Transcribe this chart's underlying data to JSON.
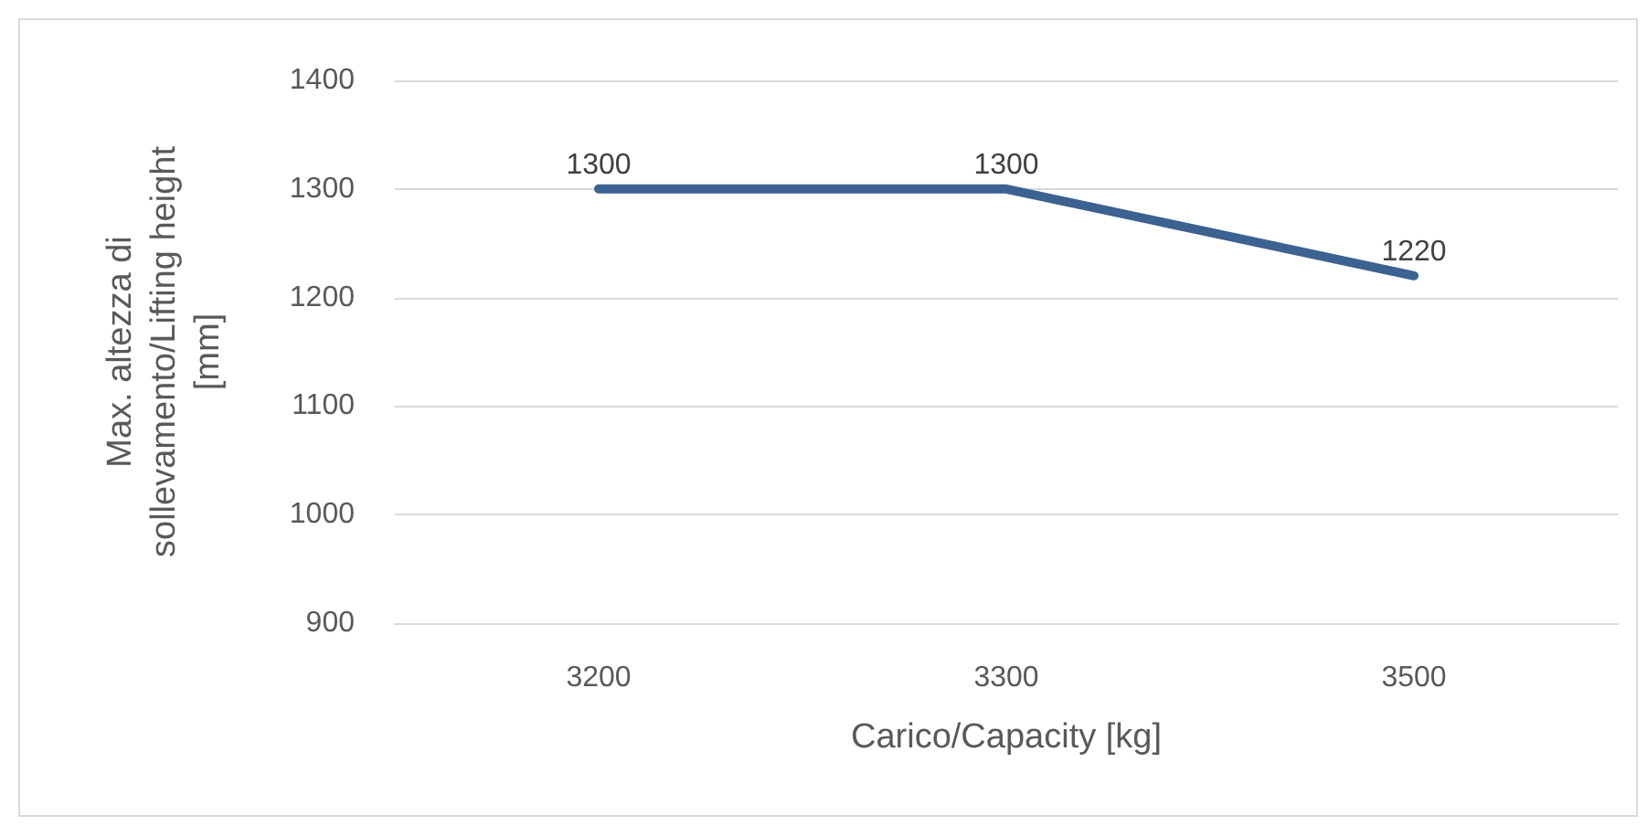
{
  "chart_data": {
    "type": "line",
    "xlabel": "Carico/Capacity [kg]",
    "ylabel": "Max. altezza di sollevamento/Lifting height [mm]",
    "categories": [
      "3200",
      "3300",
      "3500"
    ],
    "series": [
      {
        "color": "#3b6291",
        "values": [
          1300,
          1300,
          1220
        ]
      }
    ],
    "ylim": [
      900,
      1400
    ],
    "yticks": [
      900,
      1000,
      1100,
      1200,
      1300,
      1400
    ],
    "grid": "y",
    "marker": "none",
    "line_style": "solid",
    "data_labels": true
  }
}
